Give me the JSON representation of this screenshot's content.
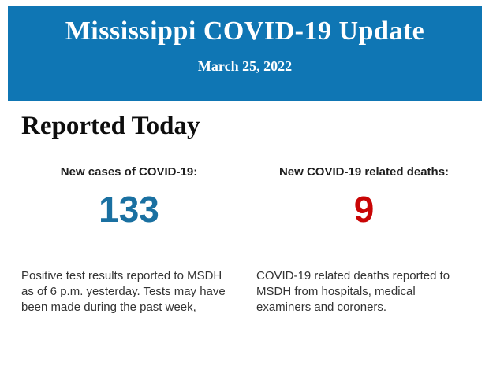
{
  "header": {
    "title": "Mississippi COVID-19 Update",
    "date": "March 25, 2022",
    "background_color": "#0f76b4",
    "text_color": "#ffffff"
  },
  "section": {
    "heading": "Reported Today"
  },
  "stats": [
    {
      "label": "New cases of COVID-19:",
      "value": "133",
      "value_color": "#1a70a1",
      "description": "Positive test results reported to MSDH as of 6 p.m. yesterday. Tests may have been made during the past week,"
    },
    {
      "label": "New COVID-19 related deaths:",
      "value": "9",
      "value_color": "#c90505",
      "description": "COVID-19 related deaths reported to MSDH from hospitals, medical examiners and coroners."
    }
  ]
}
